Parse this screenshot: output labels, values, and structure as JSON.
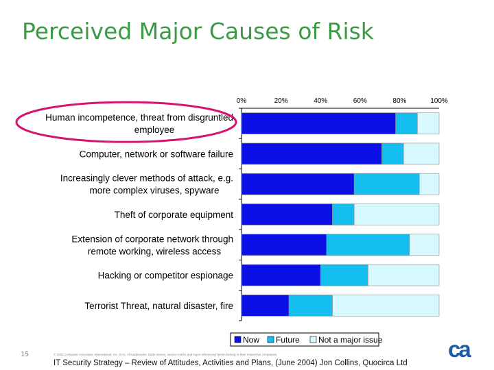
{
  "slide": {
    "title": "Perceived Major Causes of Risk",
    "page_number": "15",
    "copyright": "© 2005 Computer Associates International, Inc. (CA). All trademarks, trade names, service marks and logos referenced herein belong to their respective companies.",
    "source": "IT Security Strategy – Review of Attitudes, Activities and Plans,  (June 2004) Jon Collins, Quocirca Ltd",
    "logo_text": "ca",
    "logo_color": "#1f5aa6"
  },
  "chart_data": {
    "type": "bar",
    "orientation": "horizontal",
    "stacked": true,
    "categories": [
      [
        "Human incompetence, threat from disgruntled",
        "employee"
      ],
      [
        "Computer, network or software failure"
      ],
      [
        "Increasingly clever methods of attack, e.g.",
        "more complex viruses, spyware"
      ],
      [
        "Theft of corporate equipment"
      ],
      [
        "Extension of corporate network through",
        "remote working, wireless access"
      ],
      [
        "Hacking or competitor espionage"
      ],
      [
        "Terrorist Threat, natural disaster, fire"
      ]
    ],
    "series": [
      {
        "name": "Now",
        "color": "#0a10e6",
        "values": [
          78,
          71,
          57,
          46,
          43,
          40,
          24
        ]
      },
      {
        "name": "Future",
        "color": "#14bff0",
        "values": [
          11,
          11,
          33,
          11,
          42,
          24,
          22
        ]
      },
      {
        "name": "Not a major issue",
        "color": "#d8f8ff",
        "values": [
          11,
          18,
          10,
          43,
          15,
          36,
          54
        ]
      }
    ],
    "xlim": [
      0,
      100
    ],
    "x_ticks": [
      "0%",
      "20%",
      "40%",
      "60%",
      "80%",
      "100%"
    ],
    "x_axis_position": "top",
    "grid": false,
    "legend_position": "bottom-right",
    "highlight": {
      "category_index": 0,
      "color": "#d6146e",
      "shape": "ellipse"
    }
  }
}
